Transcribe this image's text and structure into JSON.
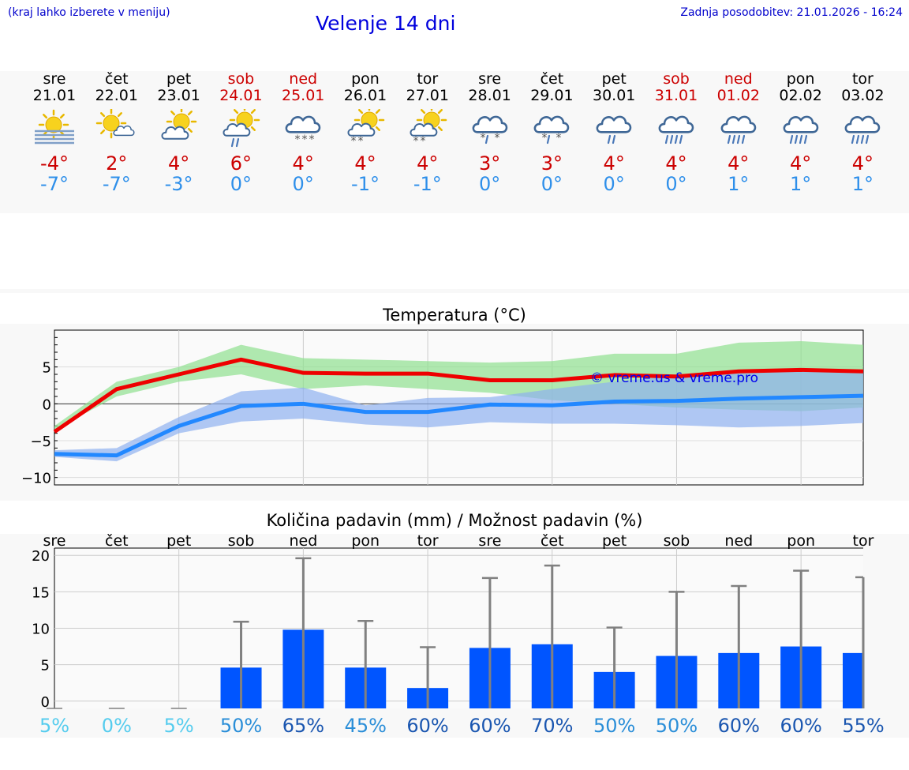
{
  "header": {
    "hint": "(kraj lahko izberete v meniju)",
    "title": "Velenje 14 dni",
    "updated": "Zadnja posodobitev: 21.01.2026 - 16:24"
  },
  "days": [
    {
      "name": "sre",
      "date": "21.01",
      "weekend": false,
      "icon": "sun-fog-icon",
      "max": "-4°",
      "min": "-7°"
    },
    {
      "name": "čet",
      "date": "22.01",
      "weekend": false,
      "icon": "sun-cloud-icon",
      "max": "2°",
      "min": "-7°"
    },
    {
      "name": "pet",
      "date": "23.01",
      "weekend": false,
      "icon": "partly-cloudy-icon",
      "max": "4°",
      "min": "-3°"
    },
    {
      "name": "sob",
      "date": "24.01",
      "weekend": true,
      "icon": "sun-cloud-rain-icon",
      "max": "6°",
      "min": "0°"
    },
    {
      "name": "ned",
      "date": "25.01",
      "weekend": true,
      "icon": "cloud-snow-icon",
      "max": "4°",
      "min": "0°"
    },
    {
      "name": "pon",
      "date": "26.01",
      "weekend": false,
      "icon": "sun-cloud-snow-icon",
      "max": "4°",
      "min": "-1°"
    },
    {
      "name": "tor",
      "date": "27.01",
      "weekend": false,
      "icon": "sun-cloud-snow-icon",
      "max": "4°",
      "min": "-1°"
    },
    {
      "name": "sre",
      "date": "28.01",
      "weekend": false,
      "icon": "cloud-sleet-icon",
      "max": "3°",
      "min": "0°"
    },
    {
      "name": "čet",
      "date": "29.01",
      "weekend": false,
      "icon": "cloud-sleet-icon",
      "max": "3°",
      "min": "0°"
    },
    {
      "name": "pet",
      "date": "30.01",
      "weekend": false,
      "icon": "cloud-rain-icon",
      "max": "4°",
      "min": "0°"
    },
    {
      "name": "sob",
      "date": "31.01",
      "weekend": true,
      "icon": "cloud-heavy-rain-icon",
      "max": "4°",
      "min": "0°"
    },
    {
      "name": "ned",
      "date": "01.02",
      "weekend": true,
      "icon": "cloud-heavy-rain-icon",
      "max": "4°",
      "min": "1°"
    },
    {
      "name": "pon",
      "date": "02.02",
      "weekend": false,
      "icon": "cloud-heavy-rain-icon",
      "max": "4°",
      "min": "1°"
    },
    {
      "name": "tor",
      "date": "03.02",
      "weekend": false,
      "icon": "cloud-heavy-rain-icon",
      "max": "4°",
      "min": "1°"
    }
  ],
  "colors": {
    "max_line": "#ee0000",
    "min_line": "#2288ff",
    "max_band": "#8ee08e",
    "min_band": "#8fb0f0",
    "bar": "#0055ff",
    "whisker": "#808080"
  },
  "chart_data": [
    {
      "type": "line",
      "title": "Temperatura (°C)",
      "watermark": "© vreme.us & vreme.pro",
      "x": [
        0,
        1,
        2,
        3,
        4,
        5,
        6,
        7,
        8,
        9,
        10,
        11,
        12,
        13
      ],
      "ylim": [
        -11,
        10
      ],
      "yticks": [
        5,
        0,
        -5,
        -10
      ],
      "ytick_labels": [
        "5",
        "0",
        "−5",
        "−10"
      ],
      "series": [
        {
          "name": "max",
          "values": [
            -3.8,
            2.0,
            4.0,
            6.0,
            4.2,
            4.1,
            4.1,
            3.2,
            3.2,
            3.9,
            3.7,
            4.4,
            4.6,
            4.4
          ],
          "band_low": [
            -3.5,
            1.0,
            3.0,
            4.0,
            2.0,
            2.5,
            2.0,
            1.5,
            0.5,
            0.0,
            -0.5,
            -0.8,
            -1.0,
            -0.5
          ],
          "band_high": [
            -3.0,
            3.0,
            5.0,
            8.0,
            6.2,
            6.0,
            5.8,
            5.6,
            5.8,
            6.8,
            6.8,
            8.3,
            8.5,
            8.0
          ]
        },
        {
          "name": "min",
          "values": [
            -6.8,
            -7.0,
            -3.0,
            -0.3,
            0.0,
            -1.1,
            -1.1,
            -0.1,
            -0.2,
            0.3,
            0.4,
            0.7,
            0.9,
            1.1
          ],
          "band_low": [
            -7.2,
            -7.8,
            -4.0,
            -2.4,
            -2.0,
            -2.8,
            -3.2,
            -2.5,
            -2.7,
            -2.7,
            -2.9,
            -3.2,
            -3.0,
            -2.6
          ],
          "band_high": [
            -6.3,
            -6.0,
            -1.8,
            1.7,
            2.2,
            -0.2,
            0.8,
            0.9,
            2.0,
            3.0,
            3.8,
            4.2,
            4.4,
            4.5
          ]
        }
      ]
    },
    {
      "type": "bar",
      "title": "Količina padavin (mm) / Možnost padavin (%)",
      "categories": [
        "sre",
        "čet",
        "pet",
        "sob",
        "ned",
        "pon",
        "tor",
        "sre",
        "čet",
        "pet",
        "sob",
        "ned",
        "pon",
        "tor"
      ],
      "values": [
        0,
        0,
        0,
        4.6,
        9.8,
        4.6,
        1.8,
        7.3,
        7.8,
        4.0,
        6.2,
        6.6,
        7.5,
        6.6
      ],
      "upper": [
        0,
        0,
        0,
        10.9,
        19.6,
        11.0,
        7.4,
        16.9,
        18.6,
        10.1,
        15.0,
        15.8,
        17.9,
        17.0
      ],
      "ylim": [
        -1,
        21
      ],
      "yticks": [
        20,
        15,
        10,
        5,
        0
      ],
      "probability": [
        "5%",
        "0%",
        "5%",
        "50%",
        "65%",
        "45%",
        "60%",
        "60%",
        "70%",
        "50%",
        "50%",
        "60%",
        "60%",
        "55%"
      ],
      "prob_values": [
        5,
        0,
        5,
        50,
        65,
        45,
        60,
        60,
        70,
        50,
        50,
        60,
        60,
        55
      ]
    }
  ]
}
